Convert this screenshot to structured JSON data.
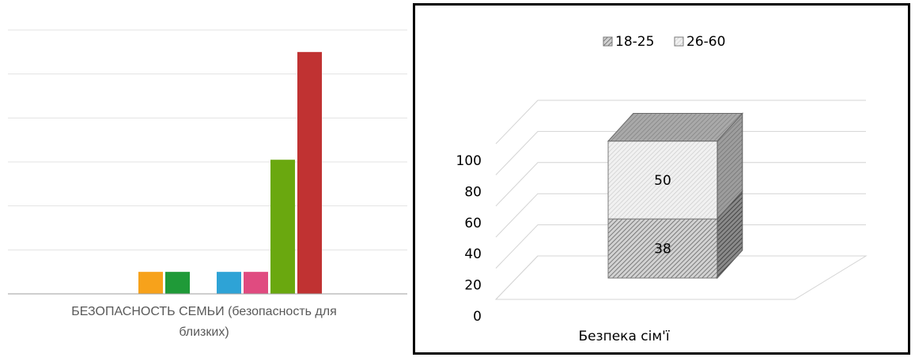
{
  "chart_data": [
    {
      "type": "bar",
      "categories": [
        "БЕЗОПАСНОСТЬ СЕМЬИ (безопасность для близких)"
      ],
      "category_label_lines": [
        "БЕЗОПАСНОСТЬ СЕМЬИ (безопасность для",
        "близких)"
      ],
      "series": [
        {
          "color": "#f7a21b",
          "values": [
            1
          ]
        },
        {
          "color": "#1f9a38",
          "values": [
            1
          ]
        },
        {
          "color": "#2ea3d6",
          "values": [
            1
          ]
        },
        {
          "color": "#e04b80",
          "values": [
            1
          ]
        },
        {
          "color": "#6aa80f",
          "values": [
            6.1
          ]
        },
        {
          "color": "#c03232",
          "values": [
            11
          ]
        }
      ],
      "ylim": [
        0,
        12
      ],
      "grid": true
    },
    {
      "type": "bar",
      "stacked": true,
      "three_d": true,
      "categories": [
        "Безпека сім'ї"
      ],
      "series": [
        {
          "name": "18-25",
          "values": [
            38
          ],
          "label": "38",
          "pattern": "dark-hatch"
        },
        {
          "name": "26-60",
          "values": [
            50
          ],
          "label": "50",
          "pattern": "light-hatch"
        }
      ],
      "ylim": [
        0,
        100
      ],
      "yticks": [
        "0",
        "20",
        "40",
        "60",
        "80",
        "100"
      ],
      "legend": "top",
      "grid": true
    }
  ]
}
